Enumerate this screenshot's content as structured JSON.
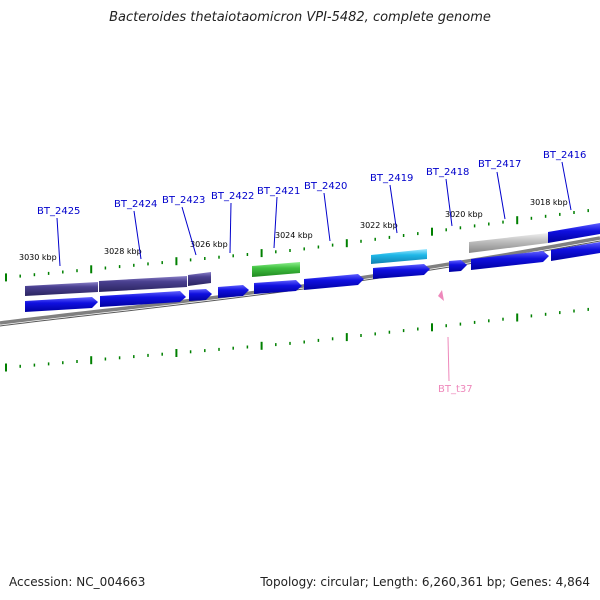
{
  "title": "Bacteroides thetaiotaomicron VPI-5482, complete genome",
  "footer": {
    "accession": "Accession: NC_004663",
    "summary": "Topology: circular; Length: 6,260,361 bp; Genes: 4,864"
  },
  "colors": {
    "cds_strand": "#1010e0",
    "cog_dark": "#4a4090",
    "cog_green": "#40c040",
    "cog_cyan": "#20b8e8",
    "cog_grey": "#b8b8b8",
    "tick": "#008000",
    "trna": "#ee88bb",
    "label": "#0000cc",
    "backbone": "#808080"
  },
  "kbp_labels": [
    "3030 kbp",
    "3028 kbp",
    "3026 kbp",
    "3024 kbp",
    "3022 kbp",
    "3020 kbp",
    "3018 kbp"
  ],
  "genes": [
    "BT_2425",
    "BT_2424",
    "BT_2423",
    "BT_2422",
    "BT_2421",
    "BT_2420",
    "BT_2419",
    "BT_2418",
    "BT_2417",
    "BT_2416"
  ],
  "trna": [
    "BT_t37"
  ]
}
